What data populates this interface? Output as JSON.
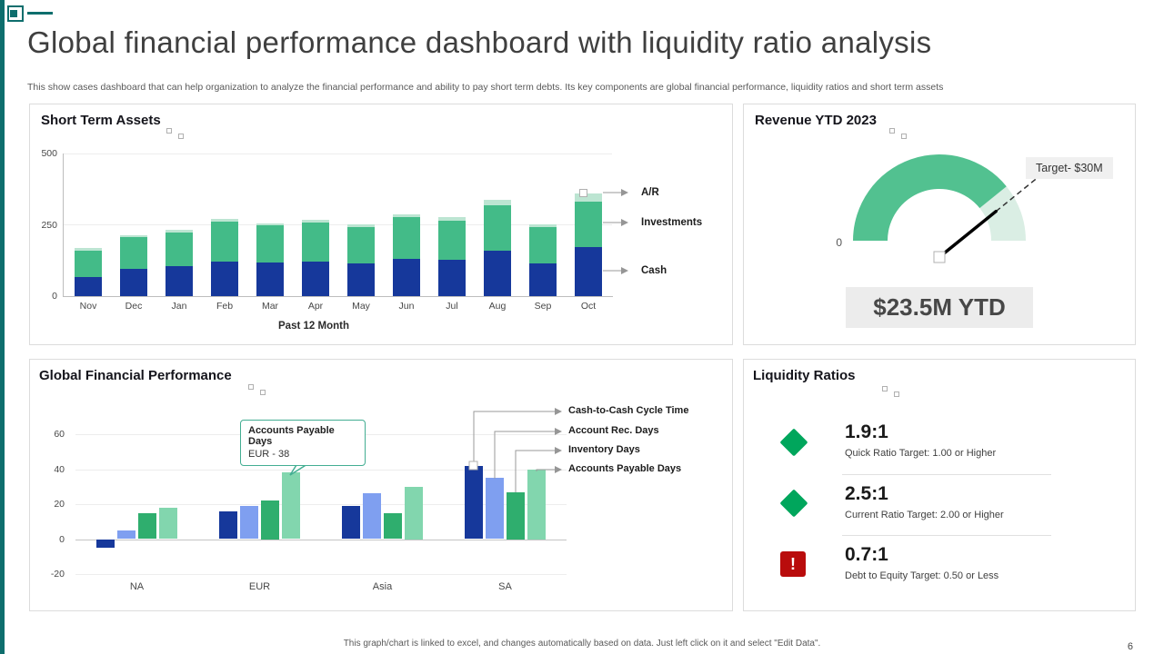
{
  "page": {
    "title": "Global financial performance dashboard with liquidity ratio analysis",
    "subtitle": "This show cases dashboard that can help organization to analyze the financial performance and ability to pay short term debts. Its key components are global financial performance, liquidity ratios and short term assets",
    "footer_note": "This graph/chart is linked to excel, and changes automatically based on data. Just left click on it and select \"Edit Data\".",
    "page_number": "6"
  },
  "colors": {
    "accent_teal": "#0e6e6d",
    "cash_blue": "#16389b",
    "invest_green": "#43bb88",
    "ar_light_green": "#bce5d2",
    "rec_periwinkle": "#7f9ff0",
    "inventory_green": "#2fae6e",
    "payable_light_green": "#82d6ae",
    "gauge_green": "#52c190",
    "gauge_rest": "#daeee4",
    "ok_green": "#00a65c",
    "alert_red": "#b90c0c"
  },
  "chart_data": [
    {
      "id": "short_term_assets",
      "type": "bar",
      "stacked": true,
      "title": "Short Term Assets",
      "xlabel": "Past 12 Month",
      "categories": [
        "Nov",
        "Dec",
        "Jan",
        "Feb",
        "Mar",
        "Apr",
        "May",
        "Jun",
        "Jul",
        "Aug",
        "Sep",
        "Oct"
      ],
      "series": [
        {
          "name": "Cash",
          "color": "#16389b",
          "values": [
            68,
            95,
            105,
            122,
            118,
            122,
            115,
            132,
            128,
            158,
            115,
            172
          ]
        },
        {
          "name": "Investments",
          "color": "#43bb88",
          "values": [
            92,
            112,
            118,
            140,
            130,
            135,
            128,
            145,
            138,
            160,
            128,
            160
          ]
        },
        {
          "name": "A/R",
          "color": "#bce5d2",
          "values": [
            8,
            8,
            8,
            10,
            8,
            10,
            8,
            10,
            10,
            20,
            8,
            28
          ]
        }
      ],
      "legend": [
        "A/R",
        "Investments",
        "Cash"
      ],
      "ylim": [
        0,
        500
      ],
      "yticks": [
        500,
        250,
        0
      ],
      "legend_position": "right"
    },
    {
      "id": "revenue_gauge",
      "type": "gauge",
      "title": "Revenue YTD 2023",
      "value": 23.5,
      "max": 30,
      "min_label": "0",
      "target_label": "Target- $30M",
      "value_label": "$23.5M YTD"
    },
    {
      "id": "global_financial_performance",
      "type": "bar",
      "grouped": true,
      "title": "Global Financial Performance",
      "categories": [
        "NA",
        "EUR",
        "Asia",
        "SA"
      ],
      "series": [
        {
          "name": "Cash-to-Cash Cycle Time",
          "color": "#16389b",
          "values": [
            -5,
            16,
            19,
            42
          ]
        },
        {
          "name": "Account Rec. Days",
          "color": "#7f9ff0",
          "values": [
            5,
            19,
            26,
            35
          ]
        },
        {
          "name": "Inventory Days",
          "color": "#2fae6e",
          "values": [
            15,
            22,
            15,
            27
          ]
        },
        {
          "name": "Accounts Payable Days",
          "color": "#82d6ae",
          "values": [
            18,
            38,
            30,
            40
          ]
        }
      ],
      "ylim": [
        -20,
        60
      ],
      "yticks": [
        60,
        40,
        20,
        0,
        -20
      ],
      "annotation": {
        "title": "Accounts Payable Days",
        "text": "EUR - 38"
      },
      "legend_position": "right"
    }
  ],
  "liquidity": {
    "title": "Liquidity Ratios",
    "items": [
      {
        "icon": "diamond-green",
        "value": "1.9:1",
        "target": "Quick Ratio Target: 1.00 or Higher"
      },
      {
        "icon": "diamond-green",
        "value": "2.5:1",
        "target": "Current Ratio Target: 2.00 or Higher"
      },
      {
        "icon": "alert-red",
        "value": "0.7:1",
        "target": "Debt to Equity Target: 0.50 or Less"
      }
    ]
  }
}
